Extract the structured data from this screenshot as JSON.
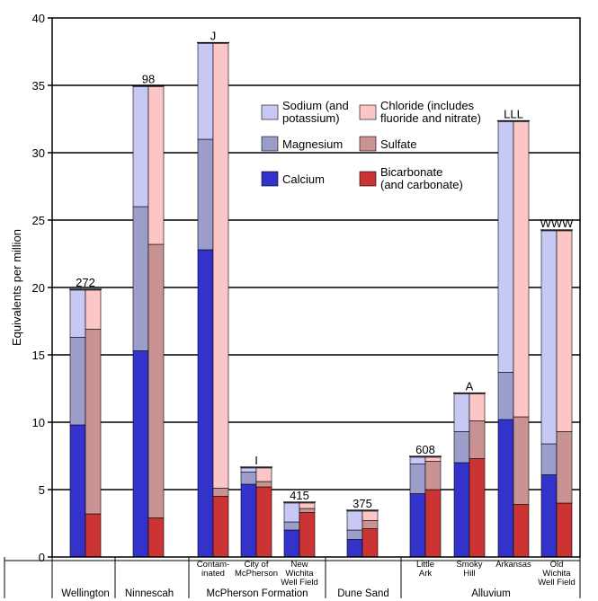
{
  "chart_data": {
    "type": "bar",
    "stacked": true,
    "paired": true,
    "ylabel": "Equivalents per million",
    "ylim": [
      0,
      40
    ],
    "yticks": [
      0,
      5,
      10,
      15,
      20,
      25,
      30,
      35,
      40
    ],
    "grid": true,
    "legend_position": "top-center",
    "colors": {
      "sodium": "#c8c8f4",
      "magnesium": "#9d9dcc",
      "calcium": "#3333cc",
      "chloride": "#fcc6c6",
      "sulfate": "#c99394",
      "bicarbonate": "#cc3333"
    },
    "legend": [
      {
        "key": "sodium",
        "line1": "Sodium (and",
        "line2": "potassium)"
      },
      {
        "key": "chloride",
        "line1": "Chloride (includes",
        "line2": "fluoride and nitrate)"
      },
      {
        "key": "magnesium",
        "line1": "Magnesium",
        "line2": ""
      },
      {
        "key": "sulfate",
        "line1": "Sulfate",
        "line2": ""
      },
      {
        "key": "calcium",
        "line1": "Calcium",
        "line2": ""
      },
      {
        "key": "bicarbonate",
        "line1": "Bicarbonate",
        "line2": "(and carbonate)"
      }
    ],
    "cations_order": [
      "calcium",
      "magnesium",
      "sodium"
    ],
    "anions_order": [
      "bicarbonate",
      "sulfate",
      "chloride"
    ],
    "samples": [
      {
        "id": "wellington",
        "label_lines": [],
        "annotation": "272",
        "cations": {
          "calcium": 9.8,
          "magnesium": 6.5,
          "sodium": 3.5
        },
        "anions": {
          "bicarbonate": 3.2,
          "sulfate": 13.7,
          "chloride": 2.9
        }
      },
      {
        "id": "ninnescah",
        "label_lines": [],
        "annotation": "98",
        "cations": {
          "calcium": 15.3,
          "magnesium": 10.7,
          "sodium": 8.9
        },
        "anions": {
          "bicarbonate": 2.9,
          "sulfate": 20.3,
          "chloride": 11.7
        }
      },
      {
        "id": "contaminated",
        "label_lines": [
          "Contam-",
          "inated"
        ],
        "annotation": "J",
        "cations": {
          "calcium": 22.8,
          "magnesium": 8.2,
          "sodium": 7.1
        },
        "anions": {
          "bicarbonate": 4.5,
          "sulfate": 0.6,
          "chloride": 33.0
        }
      },
      {
        "id": "mcpherson-city",
        "label_lines": [
          "City of",
          "McPherson"
        ],
        "annotation": "I",
        "cations": {
          "calcium": 5.4,
          "magnesium": 0.9,
          "sodium": 0.3
        },
        "anions": {
          "bicarbonate": 5.2,
          "sulfate": 0.4,
          "chloride": 1.0
        }
      },
      {
        "id": "new-wichita",
        "label_lines": [
          "New",
          "Wichita",
          "Well Field"
        ],
        "annotation": "415",
        "cations": {
          "calcium": 2.0,
          "magnesium": 0.6,
          "sodium": 1.4
        },
        "anions": {
          "bicarbonate": 3.3,
          "sulfate": 0.3,
          "chloride": 0.4
        }
      },
      {
        "id": "dune-sand",
        "label_lines": [],
        "annotation": "375",
        "cations": {
          "calcium": 1.3,
          "magnesium": 0.7,
          "sodium": 1.4
        },
        "anions": {
          "bicarbonate": 2.1,
          "sulfate": 0.6,
          "chloride": 0.7
        }
      },
      {
        "id": "little-ark",
        "label_lines": [
          "Little",
          "Ark"
        ],
        "annotation": "608",
        "cations": {
          "calcium": 4.7,
          "magnesium": 2.2,
          "sodium": 0.5
        },
        "anions": {
          "bicarbonate": 5.0,
          "sulfate": 2.1,
          "chloride": 0.3
        }
      },
      {
        "id": "smoky-hill",
        "label_lines": [
          "Smoky",
          "Hill"
        ],
        "annotation": "A",
        "cations": {
          "calcium": 7.0,
          "magnesium": 2.3,
          "sodium": 2.8
        },
        "anions": {
          "bicarbonate": 7.3,
          "sulfate": 2.8,
          "chloride": 2.0
        }
      },
      {
        "id": "arkansas",
        "label_lines": [
          "Arkansas"
        ],
        "annotation": "LLL",
        "cations": {
          "calcium": 10.2,
          "magnesium": 3.5,
          "sodium": 18.6
        },
        "anions": {
          "bicarbonate": 3.9,
          "sulfate": 6.5,
          "chloride": 21.9
        }
      },
      {
        "id": "old-wichita",
        "label_lines": [
          "Old",
          "Wichita",
          "Well Field"
        ],
        "annotation": "WWW",
        "cations": {
          "calcium": 6.1,
          "magnesium": 2.3,
          "sodium": 15.8
        },
        "anions": {
          "bicarbonate": 4.0,
          "sulfate": 5.3,
          "chloride": 14.9
        }
      }
    ],
    "groups": [
      {
        "id": "wellington",
        "label": "Wellington",
        "samples": [
          "wellington"
        ]
      },
      {
        "id": "ninnescah",
        "label": "Ninnescah",
        "samples": [
          "ninnescah"
        ]
      },
      {
        "id": "mcpherson",
        "label": "McPherson Formation",
        "samples": [
          "contaminated",
          "mcpherson-city",
          "new-wichita"
        ]
      },
      {
        "id": "dune-sand",
        "label": "Dune Sand",
        "samples": [
          "dune-sand"
        ]
      },
      {
        "id": "alluvium",
        "label": "Alluvium",
        "samples": [
          "little-ark",
          "smoky-hill",
          "arkansas",
          "old-wichita"
        ]
      }
    ]
  }
}
